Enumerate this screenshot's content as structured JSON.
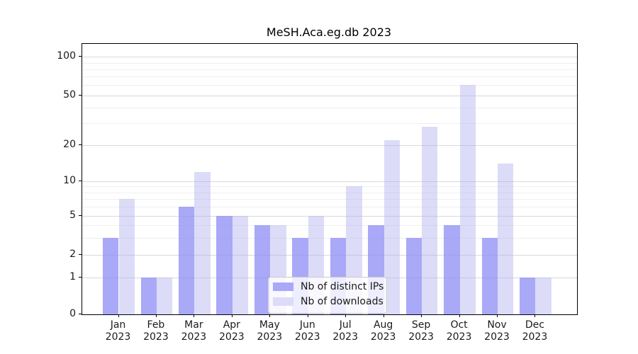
{
  "chart_data": {
    "type": "bar",
    "title": "MeSH.Aca.eg.db 2023",
    "xlabel": "",
    "ylabel": "",
    "categories": [
      "Jan 2023",
      "Feb 2023",
      "Mar 2023",
      "Apr 2023",
      "May 2023",
      "Jun 2023",
      "Jul 2023",
      "Aug 2023",
      "Sep 2023",
      "Oct 2023",
      "Nov 2023",
      "Dec 2023"
    ],
    "series": [
      {
        "name": "Nb of distinct IPs",
        "color": "#8c8cf4",
        "alpha": 0.75,
        "values": [
          3,
          1,
          6,
          5,
          4,
          3,
          3,
          4,
          3,
          4,
          3,
          1
        ]
      },
      {
        "name": "Nb of downloads",
        "color": "#acacee",
        "alpha": 0.42,
        "values": [
          7,
          1,
          12,
          5,
          4,
          5,
          9,
          22,
          28,
          60,
          14,
          1
        ]
      }
    ],
    "y_axis": {
      "scale": "log-like",
      "tick_values": [
        0,
        1,
        2,
        5,
        10,
        20,
        50,
        100
      ],
      "minor_gridline_values": [
        3,
        4,
        6,
        7,
        8,
        9,
        30,
        40,
        60,
        70,
        80,
        90
      ],
      "ylim": [
        0,
        126
      ]
    },
    "grid": "horizontal major and minor gridlines",
    "legend_position": "inside bottom-center",
    "colors": {
      "major_gridline": "#d9d9d9",
      "minor_gridline": "#efefef",
      "axis": "#000000",
      "background": "#ffffff"
    }
  }
}
